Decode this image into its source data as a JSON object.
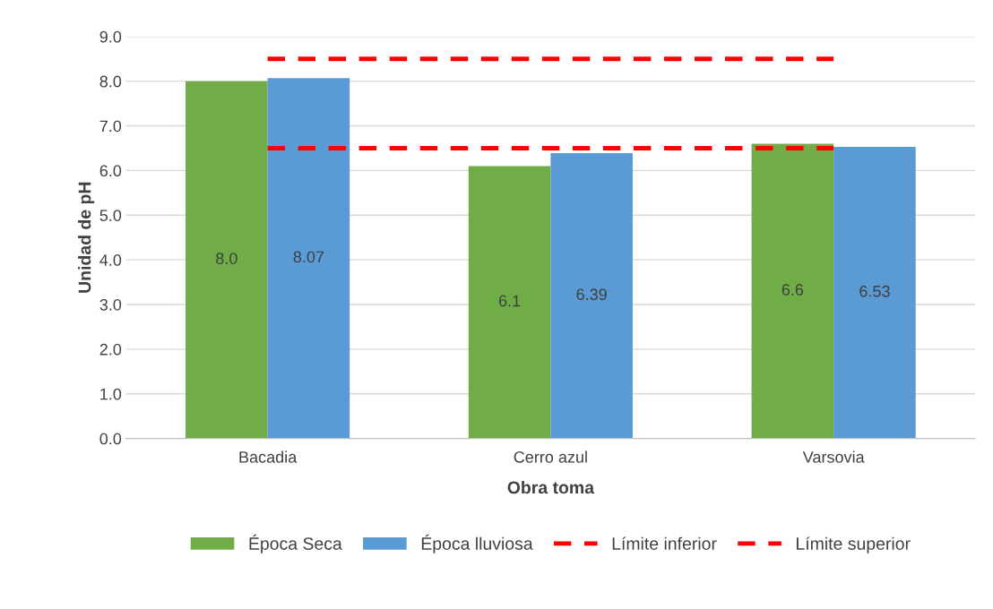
{
  "chart_data": {
    "type": "bar",
    "xlabel": "Obra toma",
    "ylabel": "Unidad de pH",
    "categories": [
      "Bacadia",
      "Cerro azul",
      "Varsovia"
    ],
    "series": [
      {
        "name": "Época Seca",
        "color": "#70ad47",
        "values": [
          8.0,
          6.1,
          6.6
        ],
        "value_labels": [
          "8.0",
          "6.1",
          "6.6"
        ]
      },
      {
        "name": "Época lluviosa",
        "color": "#5b9bd5",
        "values": [
          8.07,
          6.39,
          6.53
        ],
        "value_labels": [
          "8.07",
          "6.39",
          "6.53"
        ]
      },
      {
        "name": "Límite inferior",
        "type": "line",
        "color": "#ff0000",
        "line_style": "dashed",
        "values": [
          6.5,
          6.5,
          6.5
        ]
      },
      {
        "name": "Límite superior",
        "type": "line",
        "color": "#ff0000",
        "line_style": "dashed",
        "values": [
          8.5,
          8.5,
          8.5
        ]
      }
    ],
    "ylim": [
      0,
      9
    ],
    "yticks": [
      {
        "value": 0,
        "label": "0.0"
      },
      {
        "value": 1,
        "label": "1.0"
      },
      {
        "value": 2,
        "label": "2.0"
      },
      {
        "value": 3,
        "label": "3.0"
      },
      {
        "value": 4,
        "label": "4.0"
      },
      {
        "value": 5,
        "label": "5.0"
      },
      {
        "value": 6,
        "label": "6.0"
      },
      {
        "value": 7,
        "label": "7.0"
      },
      {
        "value": 8,
        "label": "8.0"
      },
      {
        "value": 9,
        "label": "9.0"
      }
    ],
    "grid": "y",
    "legend": "bottom"
  }
}
